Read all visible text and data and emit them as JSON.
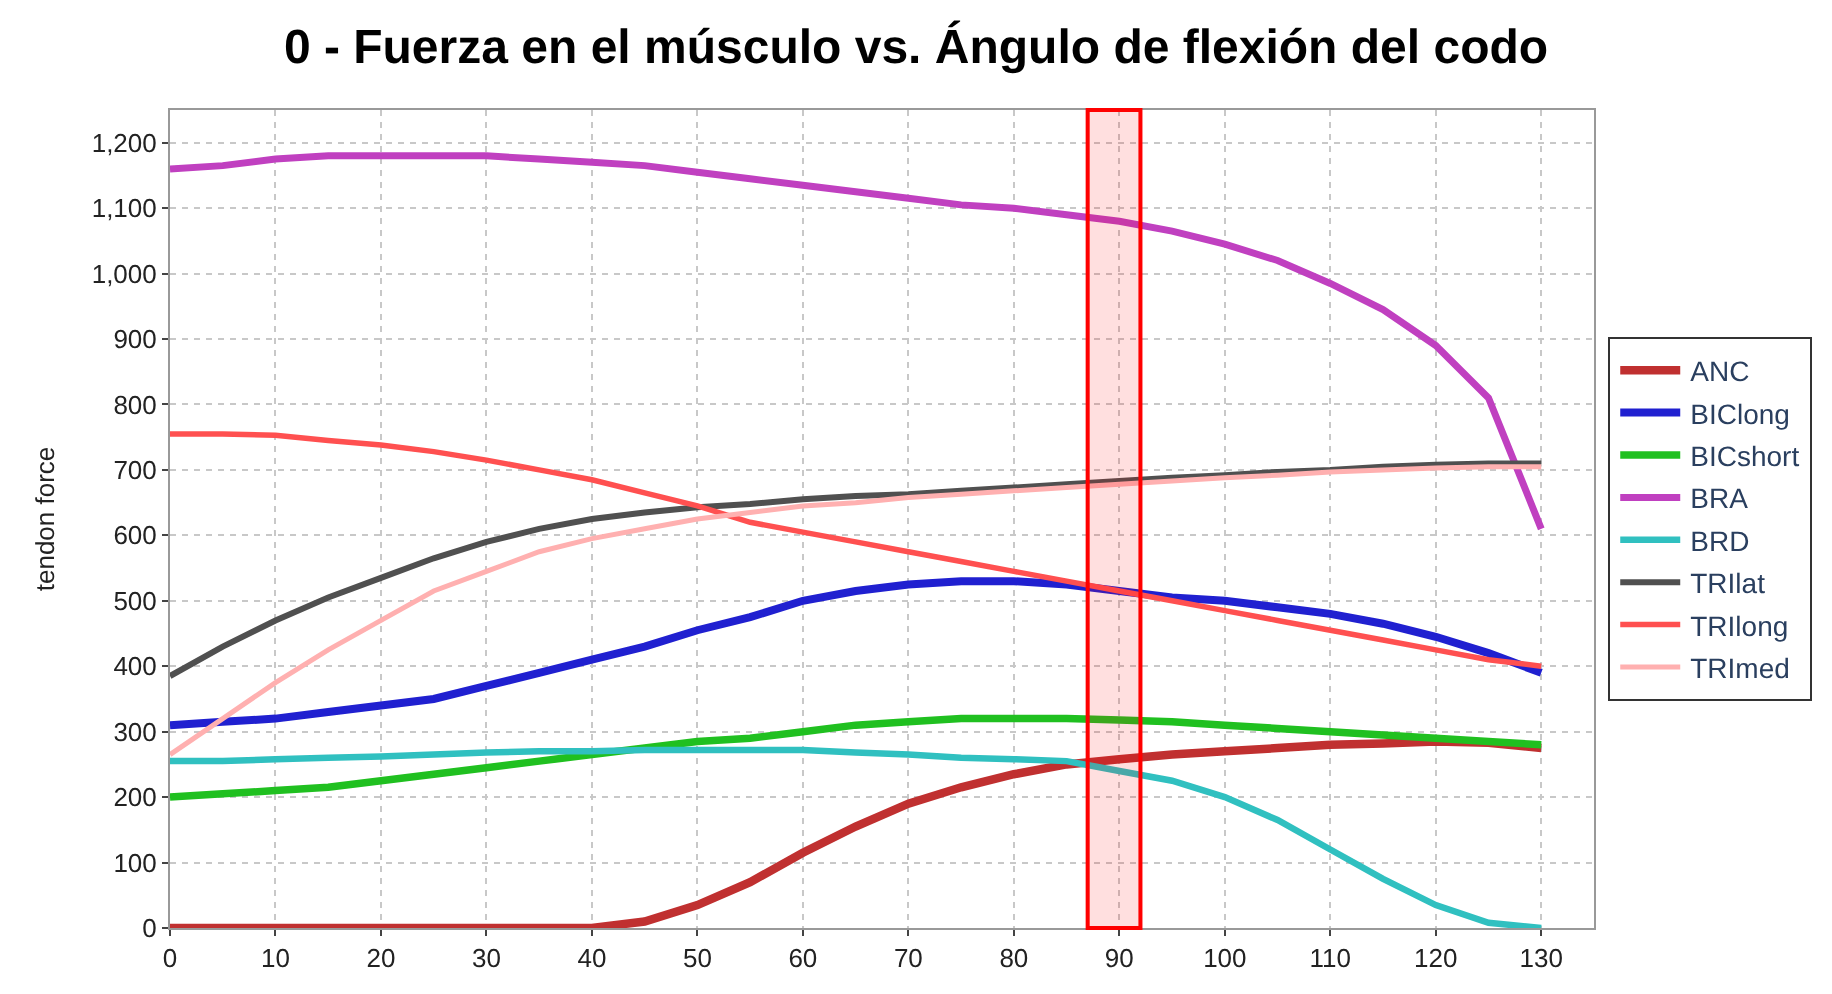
{
  "chart_data": {
    "type": "line",
    "title": "0 - Fuerza en el músculo vs. Ángulo de flexión del codo",
    "ylabel": "tendon force",
    "x": [
      0,
      5,
      10,
      15,
      20,
      25,
      30,
      35,
      40,
      45,
      50,
      55,
      60,
      65,
      70,
      75,
      80,
      85,
      90,
      95,
      100,
      105,
      110,
      115,
      120,
      125,
      130
    ],
    "xlim": [
      0,
      135
    ],
    "xticks": [
      0,
      10,
      20,
      30,
      40,
      50,
      60,
      70,
      80,
      90,
      100,
      110,
      120,
      130
    ],
    "ylim": [
      0,
      1250
    ],
    "yticks": [
      {
        "value": 0,
        "label": "0"
      },
      {
        "value": 100,
        "label": "100"
      },
      {
        "value": 200,
        "label": "200"
      },
      {
        "value": 300,
        "label": "300"
      },
      {
        "value": 400,
        "label": "400"
      },
      {
        "value": 500,
        "label": "500"
      },
      {
        "value": 600,
        "label": "600"
      },
      {
        "value": 700,
        "label": "700"
      },
      {
        "value": 800,
        "label": "800"
      },
      {
        "value": 900,
        "label": "900"
      },
      {
        "value": 1000,
        "label": "1,000"
      },
      {
        "value": 1100,
        "label": "1,100"
      },
      {
        "value": 1200,
        "label": "1,200"
      }
    ],
    "grid": true,
    "legend": "right",
    "marker": "none",
    "line_style": "solid",
    "bands": [
      {
        "axis": "x",
        "from": 87,
        "to": 92,
        "color": "#ff0000"
      }
    ],
    "series": [
      {
        "name": "ANC",
        "color": "#c03030",
        "values": [
          0,
          0,
          0,
          0,
          0,
          0,
          0,
          0,
          0,
          10,
          35,
          70,
          115,
          155,
          190,
          215,
          235,
          250,
          258,
          265,
          270,
          275,
          280,
          282,
          285,
          283,
          275
        ]
      },
      {
        "name": "BIClong",
        "color": "#2020d0",
        "values": [
          310,
          315,
          320,
          330,
          340,
          350,
          370,
          390,
          410,
          430,
          455,
          475,
          500,
          515,
          525,
          530,
          530,
          525,
          515,
          505,
          500,
          490,
          480,
          465,
          445,
          420,
          390
        ]
      },
      {
        "name": "BICshort",
        "color": "#20c020",
        "values": [
          200,
          205,
          210,
          215,
          225,
          235,
          245,
          255,
          265,
          275,
          285,
          290,
          300,
          310,
          315,
          320,
          320,
          320,
          318,
          315,
          310,
          305,
          300,
          295,
          290,
          285,
          280
        ]
      },
      {
        "name": "BRA",
        "color": "#c040c0",
        "values": [
          1160,
          1165,
          1175,
          1180,
          1180,
          1180,
          1180,
          1175,
          1170,
          1165,
          1155,
          1145,
          1135,
          1125,
          1115,
          1105,
          1100,
          1090,
          1080,
          1065,
          1045,
          1020,
          985,
          945,
          890,
          810,
          610
        ]
      },
      {
        "name": "BRD",
        "color": "#30c0c0",
        "values": [
          255,
          255,
          258,
          260,
          262,
          265,
          268,
          270,
          270,
          272,
          272,
          272,
          272,
          268,
          265,
          260,
          258,
          255,
          240,
          225,
          200,
          165,
          120,
          75,
          35,
          8,
          0
        ]
      },
      {
        "name": "TRIlat",
        "color": "#505050",
        "values": [
          385,
          430,
          470,
          505,
          535,
          565,
          590,
          610,
          625,
          635,
          643,
          648,
          655,
          660,
          663,
          668,
          673,
          678,
          683,
          688,
          692,
          697,
          700,
          705,
          708,
          710,
          710
        ]
      },
      {
        "name": "TRIlong",
        "color": "#ff5050",
        "values": [
          755,
          755,
          753,
          745,
          738,
          728,
          715,
          700,
          685,
          665,
          645,
          620,
          605,
          590,
          575,
          560,
          545,
          530,
          515,
          500,
          485,
          470,
          455,
          440,
          425,
          410,
          400
        ]
      },
      {
        "name": "TRImed",
        "color": "#ffb0b0",
        "values": [
          265,
          320,
          375,
          425,
          470,
          515,
          545,
          575,
          595,
          610,
          625,
          635,
          645,
          650,
          658,
          663,
          668,
          673,
          678,
          683,
          688,
          692,
          697,
          700,
          703,
          705,
          705
        ]
      }
    ]
  }
}
